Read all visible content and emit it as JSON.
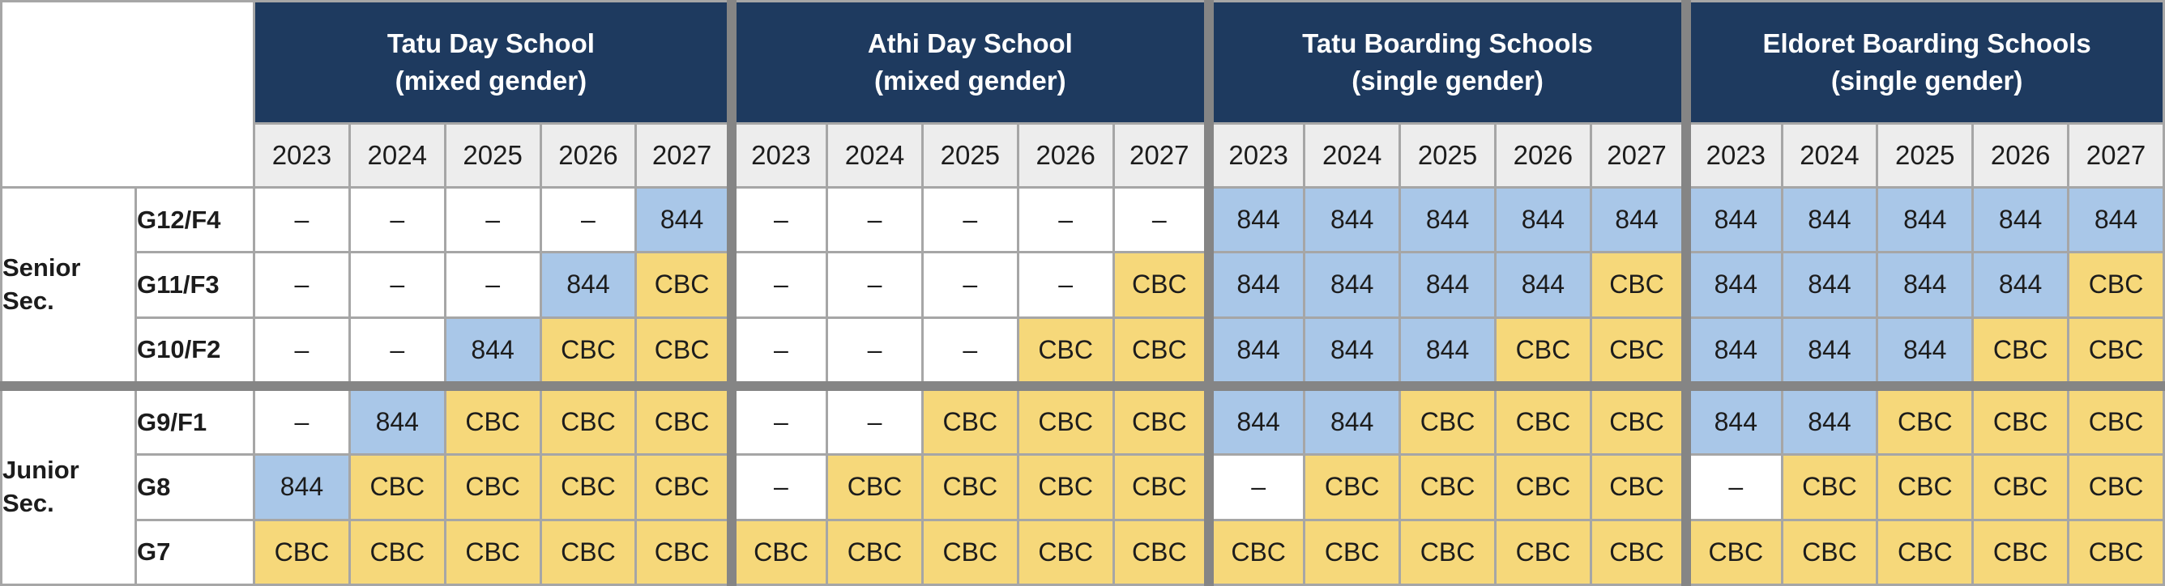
{
  "chart_data": {
    "type": "table",
    "column_groups": [
      {
        "title": "Tatu Day School",
        "subtitle": "(mixed gender)"
      },
      {
        "title": "Athi Day School",
        "subtitle": "(mixed gender)"
      },
      {
        "title": "Tatu Boarding Schools",
        "subtitle": "(single gender)"
      },
      {
        "title": "Eldoret Boarding Schools",
        "subtitle": "(single gender)"
      }
    ],
    "years": [
      "2023",
      "2024",
      "2025",
      "2026",
      "2027"
    ],
    "row_groups": [
      {
        "label": "Senior Sec.",
        "grades": [
          "G12/F4",
          "G11/F3",
          "G10/F2"
        ]
      },
      {
        "label": "Junior Sec.",
        "grades": [
          "G9/F1",
          "G8",
          "G7"
        ]
      }
    ],
    "rows": [
      {
        "grade": "G12/F4",
        "section": "Senior Sec.",
        "cells": [
          "–",
          "–",
          "–",
          "–",
          "844",
          "–",
          "–",
          "–",
          "–",
          "–",
          "844",
          "844",
          "844",
          "844",
          "844",
          "844",
          "844",
          "844",
          "844",
          "844"
        ]
      },
      {
        "grade": "G11/F3",
        "section": "Senior Sec.",
        "cells": [
          "–",
          "–",
          "–",
          "844",
          "CBC",
          "–",
          "–",
          "–",
          "–",
          "CBC",
          "844",
          "844",
          "844",
          "844",
          "CBC",
          "844",
          "844",
          "844",
          "844",
          "CBC"
        ]
      },
      {
        "grade": "G10/F2",
        "section": "Senior Sec.",
        "cells": [
          "–",
          "–",
          "844",
          "CBC",
          "CBC",
          "–",
          "–",
          "–",
          "CBC",
          "CBC",
          "844",
          "844",
          "844",
          "CBC",
          "CBC",
          "844",
          "844",
          "844",
          "CBC",
          "CBC"
        ]
      },
      {
        "grade": "G9/F1",
        "section": "Junior Sec.",
        "cells": [
          "–",
          "844",
          "CBC",
          "CBC",
          "CBC",
          "–",
          "–",
          "CBC",
          "CBC",
          "CBC",
          "844",
          "844",
          "CBC",
          "CBC",
          "CBC",
          "844",
          "844",
          "CBC",
          "CBC",
          "CBC"
        ]
      },
      {
        "grade": "G8",
        "section": "Junior Sec.",
        "cells": [
          "844",
          "CBC",
          "CBC",
          "CBC",
          "CBC",
          "–",
          "CBC",
          "CBC",
          "CBC",
          "CBC",
          "–",
          "CBC",
          "CBC",
          "CBC",
          "CBC",
          "–",
          "CBC",
          "CBC",
          "CBC",
          "CBC"
        ]
      },
      {
        "grade": "G7",
        "section": "Junior Sec.",
        "cells": [
          "CBC",
          "CBC",
          "CBC",
          "CBC",
          "CBC",
          "CBC",
          "CBC",
          "CBC",
          "CBC",
          "CBC",
          "CBC",
          "CBC",
          "CBC",
          "CBC",
          "CBC",
          "CBC",
          "CBC",
          "CBC",
          "CBC",
          "CBC"
        ]
      }
    ],
    "value_colors": {
      "844": "#a9c7e8",
      "CBC": "#f6d87a",
      "–": "#ffffff"
    },
    "layout": {
      "header_bg": "#1e3a5f",
      "header_text": "#ffffff",
      "year_bg": "#ededed",
      "grid_line": "#a6a6a6",
      "section_divider": "#858585",
      "text_color": "#1c1c1c",
      "legend_position": "none",
      "grid": true
    }
  }
}
